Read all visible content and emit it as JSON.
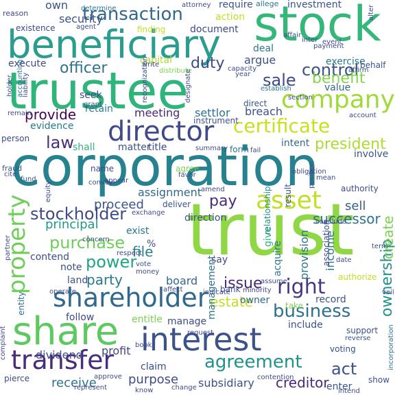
{
  "title": "",
  "palette": {
    "dark_purple": "#440154",
    "indigo": "#3b528b",
    "teal": "#21918c",
    "green": "#2fb47c",
    "lime": "#7ad151",
    "yellow": "#fde725"
  },
  "words": [
    {
      "text": "corporation",
      "color": "#26828e"
    },
    {
      "text": "trust",
      "color": "#8fd744"
    },
    {
      "text": "trustee",
      "color": "#2fb47c"
    },
    {
      "text": "stock",
      "color": "#35b779"
    },
    {
      "text": "beneficiary",
      "color": "#2a9d8f"
    },
    {
      "text": "interest",
      "color": "#3b528b"
    },
    {
      "text": "share",
      "color": "#5ec962"
    },
    {
      "text": "shareholder",
      "color": "#31688e"
    },
    {
      "text": "director",
      "color": "#3e4a89"
    },
    {
      "text": "company",
      "color": "#a0da39"
    },
    {
      "text": "asset",
      "color": "#c2df23"
    },
    {
      "text": "transfer",
      "color": "#472d7b"
    },
    {
      "text": "agreement",
      "color": "#21918c"
    },
    {
      "text": "property",
      "color": "#6ece58"
    },
    {
      "text": "certificate",
      "color": "#c8e020"
    },
    {
      "text": "transaction",
      "color": "#31688e"
    },
    {
      "text": "right",
      "color": "#443983"
    },
    {
      "text": "business",
      "color": "#2c728e"
    },
    {
      "text": "control",
      "color": "#3b528b"
    },
    {
      "text": "benefit",
      "color": "#86d549"
    },
    {
      "text": "sale",
      "color": "#3e4a89"
    },
    {
      "text": "officer",
      "color": "#2c728e"
    },
    {
      "text": "law",
      "color": "#472d7b"
    },
    {
      "text": "stockholder",
      "color": "#3e4a89"
    },
    {
      "text": "power",
      "color": "#20a386"
    },
    {
      "text": "purchase",
      "color": "#6ece58"
    },
    {
      "text": "ownership",
      "color": "#21918c"
    },
    {
      "text": "act",
      "color": "#3b528b"
    },
    {
      "text": "pay",
      "color": "#472d7b"
    },
    {
      "text": "receive",
      "color": "#2c728e"
    },
    {
      "text": "creditor",
      "color": "#482878"
    },
    {
      "text": "president",
      "color": "#addc30"
    },
    {
      "text": "provide",
      "color": "#440154"
    },
    {
      "text": "duty",
      "color": "#3e4a89"
    },
    {
      "text": "issue",
      "color": "#482878"
    },
    {
      "text": "party",
      "color": "#2a788e"
    },
    {
      "text": "estate",
      "color": "#c2df23"
    },
    {
      "text": "successor",
      "color": "#2c728e"
    },
    {
      "text": "proceed",
      "color": "#3b528b"
    },
    {
      "text": "assignment",
      "color": "#31688e"
    },
    {
      "text": "sell",
      "color": "#355f8d"
    },
    {
      "text": "dividend",
      "color": "#3e4a89"
    },
    {
      "text": "subsidiary",
      "color": "#3b528b"
    },
    {
      "text": "file",
      "color": "#26828e"
    },
    {
      "text": "entitle",
      "color": "#7ad151"
    },
    {
      "text": "owner",
      "color": "#31688e"
    },
    {
      "text": "profit",
      "color": "#414487"
    },
    {
      "text": "purpose",
      "color": "#3e4a89"
    },
    {
      "text": "principal",
      "color": "#1f988b"
    },
    {
      "text": "meeting",
      "color": "#482878"
    },
    {
      "text": "security",
      "color": "#3b528b"
    },
    {
      "text": "own",
      "color": "#3b528b"
    },
    {
      "text": "action",
      "color": "#c2df23"
    },
    {
      "text": "document",
      "color": "#3e4a89"
    },
    {
      "text": "require",
      "color": "#3b528b"
    },
    {
      "text": "investment",
      "color": "#3b528b"
    },
    {
      "text": "allege",
      "color": "#2a788e"
    },
    {
      "text": "argue",
      "color": "#3b528b"
    },
    {
      "text": "exercise",
      "color": "#2a788e"
    },
    {
      "text": "deal",
      "color": "#2a788e"
    },
    {
      "text": "capital",
      "color": "#addc30"
    },
    {
      "text": "execute",
      "color": "#3e4a89"
    },
    {
      "text": "retain",
      "color": "#2a788e"
    },
    {
      "text": "evidence",
      "color": "#2a788e"
    },
    {
      "text": "settlor",
      "color": "#2c728e"
    },
    {
      "text": "breach",
      "color": "#3b528b"
    },
    {
      "text": "direct",
      "color": "#3b528b"
    },
    {
      "text": "instrument",
      "color": "#3b528b"
    },
    {
      "text": "intent",
      "color": "#31688e"
    },
    {
      "text": "form",
      "color": "#2c728e"
    },
    {
      "text": "matter",
      "color": "#3b528b"
    },
    {
      "text": "title",
      "color": "#3e4a89"
    },
    {
      "text": "shall",
      "color": "#2fb47c"
    },
    {
      "text": "value",
      "color": "#31688e"
    },
    {
      "text": "land",
      "color": "#3b528b"
    },
    {
      "text": "board",
      "color": "#31688e"
    },
    {
      "text": "note",
      "color": "#3e4a89"
    },
    {
      "text": "contend",
      "color": "#3e4a89"
    },
    {
      "text": "exist",
      "color": "#2a788e"
    },
    {
      "text": "direction",
      "color": "#3b528b"
    },
    {
      "text": "management",
      "color": "#2c728e"
    },
    {
      "text": "give",
      "color": "#2fb47c"
    },
    {
      "text": "acquire",
      "color": "#2a788e"
    },
    {
      "text": "provision",
      "color": "#2c728e"
    },
    {
      "text": "income",
      "color": "#2a788e"
    },
    {
      "text": "association",
      "color": "#3e4a89"
    },
    {
      "text": "create",
      "color": "#7ad151"
    },
    {
      "text": "record",
      "color": "#3b528b"
    },
    {
      "text": "include",
      "color": "#3b528b"
    },
    {
      "text": "bank",
      "color": "#3b528b"
    },
    {
      "text": "say",
      "color": "#3e4a89"
    },
    {
      "text": "follow",
      "color": "#3e4a89"
    },
    {
      "text": "manage",
      "color": "#3e4a89"
    },
    {
      "text": "claim",
      "color": "#3e4a89"
    },
    {
      "text": "authority",
      "color": "#3e4a89"
    },
    {
      "text": "authorize",
      "color": "#c2df23"
    },
    {
      "text": "enter",
      "color": "#3b528b"
    },
    {
      "text": "voting",
      "color": "#3b528b"
    },
    {
      "text": "result",
      "color": "#3b528b"
    },
    {
      "text": "relationship",
      "color": "#21918c"
    },
    {
      "text": "involve",
      "color": "#3b528b"
    },
    {
      "text": "entity",
      "color": "#2c728e"
    },
    {
      "text": "person",
      "color": "#3e4a89"
    },
    {
      "text": "fraud",
      "color": "#3b528b"
    },
    {
      "text": "name",
      "color": "#3e4a89"
    },
    {
      "text": "agree",
      "color": "#7ad151"
    },
    {
      "text": "deliver",
      "color": "#3b528b"
    },
    {
      "text": "seek",
      "color": "#3e4a89"
    },
    {
      "text": "affirm",
      "color": "#3b528b"
    },
    {
      "text": "establish",
      "color": "#2a788e"
    },
    {
      "text": "liability",
      "color": "#3e4a89"
    },
    {
      "text": "accounting",
      "color": "#2c728e"
    },
    {
      "text": "holder",
      "color": "#3b528b"
    },
    {
      "text": "existence",
      "color": "#3e4a89"
    },
    {
      "text": "reason",
      "color": "#3e4a89"
    },
    {
      "text": "agent",
      "color": "#3e4a89"
    },
    {
      "text": "determine",
      "color": "#2a788e"
    },
    {
      "text": "finding",
      "color": "#c2df23"
    },
    {
      "text": "distribute",
      "color": "#7ad151"
    },
    {
      "text": "behalf",
      "color": "#3b528b"
    },
    {
      "text": "year",
      "color": "#3b528b"
    },
    {
      "text": "capacity",
      "color": "#3e4a89"
    },
    {
      "text": "remain",
      "color": "#3e4a89"
    },
    {
      "text": "complaint",
      "color": "#3e4a89"
    },
    {
      "text": "pierce",
      "color": "#3e4a89"
    },
    {
      "text": "approve",
      "color": "#3e4a89"
    },
    {
      "text": "represent",
      "color": "#3e4a89"
    },
    {
      "text": "change",
      "color": "#3e4a89"
    },
    {
      "text": "show",
      "color": "#3b528b"
    },
    {
      "text": "support",
      "color": "#3b528b"
    },
    {
      "text": "minority",
      "color": "#3e4a89"
    },
    {
      "text": "veil",
      "color": "#3b528b"
    },
    {
      "text": "incorporation",
      "color": "#2c728e"
    },
    {
      "text": "reverse",
      "color": "#3b528b"
    },
    {
      "text": "date",
      "color": "#3e4a89"
    },
    {
      "text": "take",
      "color": "#7ad151"
    },
    {
      "text": "intend",
      "color": "#3e4a89"
    },
    {
      "text": "favor",
      "color": "#3e4a89"
    },
    {
      "text": "appear",
      "color": "#3e4a89"
    },
    {
      "text": "%",
      "color": "#3e4a89"
    },
    {
      "text": "vote",
      "color": "#3e4a89"
    },
    {
      "text": "money",
      "color": "#3e4a89"
    },
    {
      "text": "convey",
      "color": "#3e4a89"
    },
    {
      "text": "concern",
      "color": "#3e4a89"
    },
    {
      "text": "fund",
      "color": "#3e4a89"
    },
    {
      "text": "equity",
      "color": "#3e4a89"
    },
    {
      "text": "book",
      "color": "#3e4a89"
    },
    {
      "text": "grant",
      "color": "#3e4a89"
    },
    {
      "text": "position",
      "color": "#3e4a89"
    },
    {
      "text": "term",
      "color": "#3e4a89"
    },
    {
      "text": "respect",
      "color": "#3e4a89"
    },
    {
      "text": "account",
      "color": "#3e4a89"
    },
    {
      "text": "summary",
      "color": "#3e4a89"
    },
    {
      "text": "payment",
      "color": "#3e4a89"
    },
    {
      "text": "affair",
      "color": "#3e4a89"
    },
    {
      "text": "alter",
      "color": "#3e4a89"
    },
    {
      "text": "attorney",
      "color": "#3e4a89"
    },
    {
      "text": "event",
      "color": "#3e4a89"
    },
    {
      "text": "section",
      "color": "#3e4a89"
    },
    {
      "text": "write",
      "color": "#3e4a89"
    },
    {
      "text": "designate",
      "color": "#3e4a89"
    },
    {
      "text": "recognization",
      "color": "#3e4a89"
    },
    {
      "text": "cite",
      "color": "#3e4a89"
    },
    {
      "text": "fail",
      "color": "#3e4a89"
    },
    {
      "text": "conclude",
      "color": "#3e4a89"
    },
    {
      "text": "obligation",
      "color": "#3e4a89"
    },
    {
      "text": "contention",
      "color": "#3e4a89"
    },
    {
      "text": "exchange",
      "color": "#3e4a89"
    },
    {
      "text": "assume",
      "color": "#3e4a89"
    },
    {
      "text": "indicate",
      "color": "#3e4a89"
    },
    {
      "text": "affect",
      "color": "#3e4a89"
    },
    {
      "text": "operate",
      "color": "#3e4a89"
    },
    {
      "text": "amend",
      "color": "#3e4a89"
    },
    {
      "text": "know",
      "color": "#3e4a89"
    },
    {
      "text": "request",
      "color": "#3e4a89"
    },
    {
      "text": "mean",
      "color": "#3e4a89"
    },
    {
      "text": "inter",
      "color": "#3e4a89"
    },
    {
      "text": "partner",
      "color": "#3e4a89"
    }
  ]
}
